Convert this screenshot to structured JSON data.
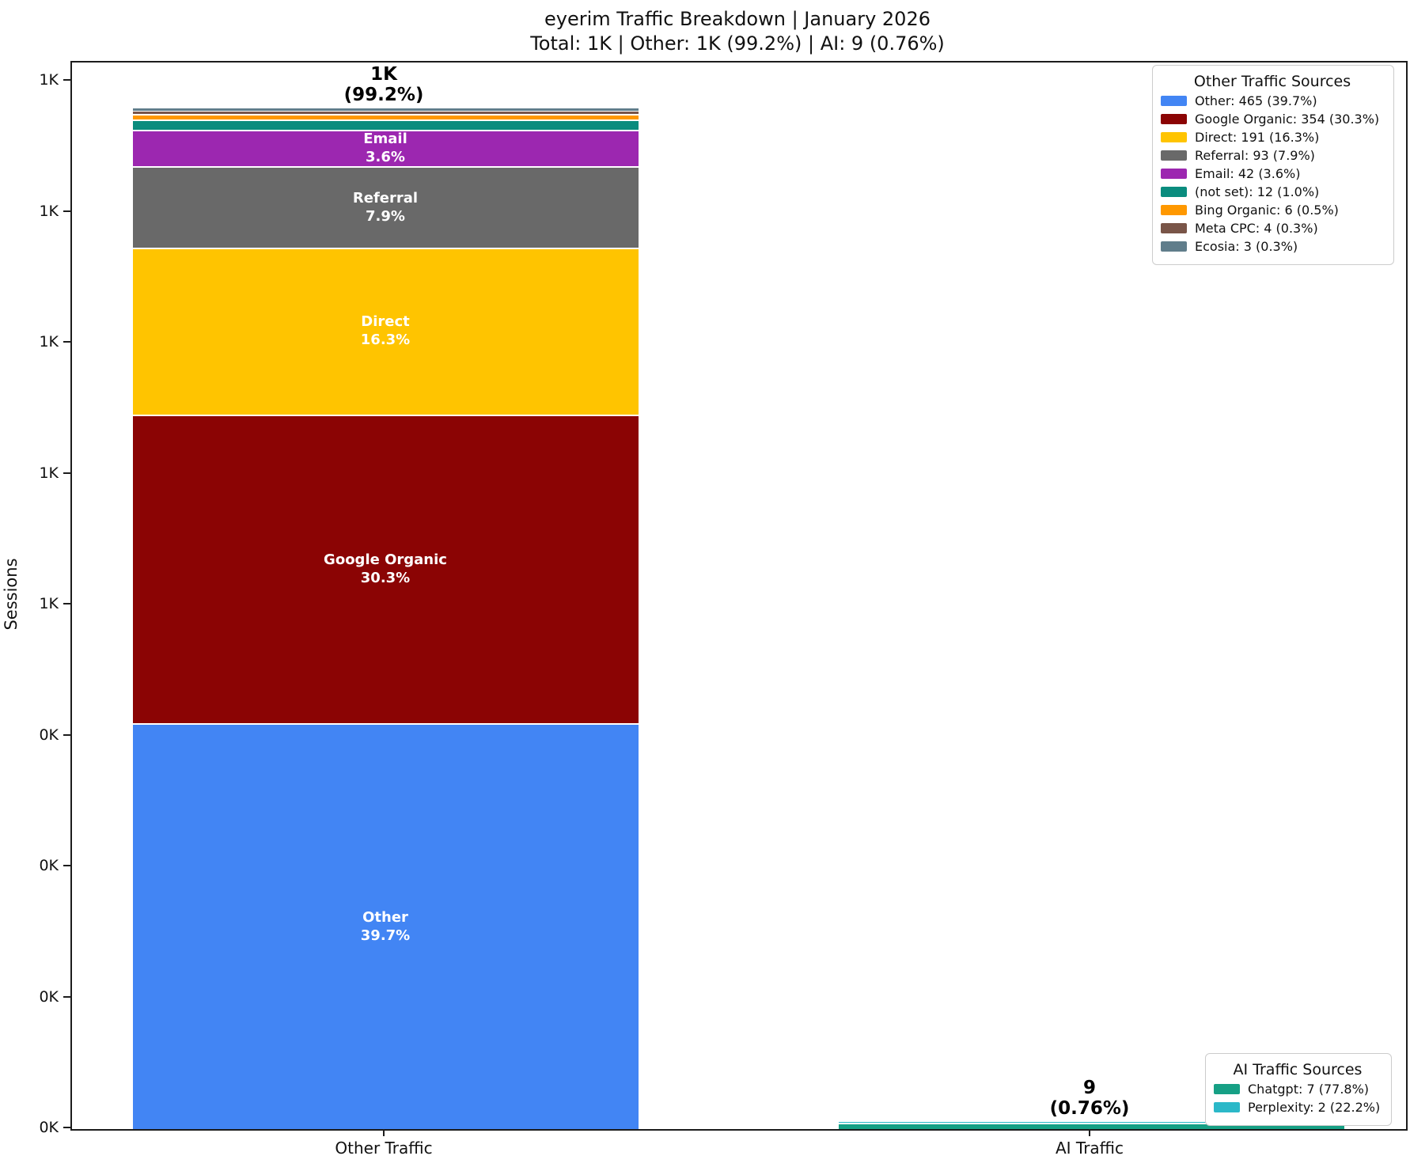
{
  "header": {
    "title": "eyerim Traffic Breakdown | January 2026",
    "subtitle": "Total: 1K | Other: 1K (99.2%) | AI: 9 (0.76%)"
  },
  "chart_data": {
    "type": "bar",
    "stacked": true,
    "title": "eyerim Traffic Breakdown | January 2026",
    "subtitle": "Total: 1K | Other: 1K (99.2%) | AI: 9 (0.76%)",
    "ylabel": "Sessions",
    "xlabel": "",
    "ylim": [
      0,
      1222
    ],
    "grid": false,
    "categories": [
      "Other Traffic",
      "AI Traffic"
    ],
    "yticks": [
      {
        "value": 0,
        "label": "0K"
      },
      {
        "value": 150,
        "label": "0K"
      },
      {
        "value": 300,
        "label": "0K"
      },
      {
        "value": 450,
        "label": "0K"
      },
      {
        "value": 600,
        "label": "1K"
      },
      {
        "value": 750,
        "label": "1K"
      },
      {
        "value": 900,
        "label": "1K"
      },
      {
        "value": 1050,
        "label": "1K"
      },
      {
        "value": 1200,
        "label": "1K"
      }
    ],
    "bars": [
      {
        "category": "Other Traffic",
        "total": 1170,
        "annotation_value": "1K",
        "annotation_pct": "(99.2%)",
        "segments": [
          {
            "name": "Other",
            "value": 465,
            "pct": "39.7%",
            "color": "#4285F4",
            "show_label": true
          },
          {
            "name": "Google Organic",
            "value": 354,
            "pct": "30.3%",
            "color": "#8B0404",
            "show_label": true
          },
          {
            "name": "Direct",
            "value": 191,
            "pct": "16.3%",
            "color": "#FFC400",
            "show_label": true
          },
          {
            "name": "Referral",
            "value": 93,
            "pct": "7.9%",
            "color": "#696969",
            "show_label": true
          },
          {
            "name": "Email",
            "value": 42,
            "pct": "3.6%",
            "color": "#9C27B0",
            "show_label": true
          },
          {
            "name": "(not set)",
            "value": 12,
            "pct": "1.0%",
            "color": "#0A8C7E",
            "show_label": false
          },
          {
            "name": "Bing Organic",
            "value": 6,
            "pct": "0.5%",
            "color": "#FF9800",
            "show_label": false
          },
          {
            "name": "Meta CPC",
            "value": 4,
            "pct": "0.3%",
            "color": "#795548",
            "show_label": false
          },
          {
            "name": "Ecosia",
            "value": 3,
            "pct": "0.3%",
            "color": "#607D8B",
            "show_label": false
          }
        ]
      },
      {
        "category": "AI Traffic",
        "total": 9,
        "annotation_value": "9",
        "annotation_pct": "(0.76%)",
        "segments": [
          {
            "name": "Chatgpt",
            "value": 7,
            "pct": "77.8%",
            "color": "#16A085",
            "show_label": false
          },
          {
            "name": "Perplexity",
            "value": 2,
            "pct": "22.2%",
            "color": "#2BB8C8",
            "show_label": false
          }
        ]
      }
    ],
    "legend_position": [
      "upper right",
      "lower right"
    ]
  },
  "legends": [
    {
      "title": "Other Traffic Sources",
      "items": [
        {
          "label": "Other: 465 (39.7%)",
          "color": "#4285F4"
        },
        {
          "label": "Google Organic: 354 (30.3%)",
          "color": "#8B0404"
        },
        {
          "label": "Direct: 191 (16.3%)",
          "color": "#FFC400"
        },
        {
          "label": "Referral: 93 (7.9%)",
          "color": "#696969"
        },
        {
          "label": "Email: 42 (3.6%)",
          "color": "#9C27B0"
        },
        {
          "label": "(not set): 12 (1.0%)",
          "color": "#0A8C7E"
        },
        {
          "label": "Bing Organic: 6 (0.5%)",
          "color": "#FF9800"
        },
        {
          "label": "Meta CPC: 4 (0.3%)",
          "color": "#795548"
        },
        {
          "label": "Ecosia: 3 (0.3%)",
          "color": "#607D8B"
        }
      ]
    },
    {
      "title": "AI Traffic Sources",
      "items": [
        {
          "label": "Chatgpt: 7 (77.8%)",
          "color": "#16A085"
        },
        {
          "label": "Perplexity: 2 (22.2%)",
          "color": "#2BB8C8"
        }
      ]
    }
  ]
}
